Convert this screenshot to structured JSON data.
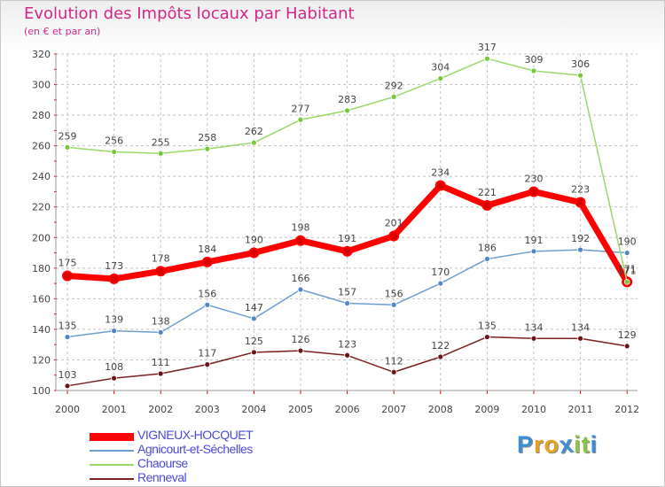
{
  "title": "Evolution des Impôts locaux par Habitant",
  "subtitle": "(en € et par an)",
  "logo": {
    "text": "Proxiti",
    "letters": [
      {
        "char": "P",
        "color": "#3b8fd9"
      },
      {
        "char": "r",
        "color": "#e8a21e"
      },
      {
        "char": "o",
        "color": "#e8a21e"
      },
      {
        "char": "x",
        "color": "#3b8fd9"
      },
      {
        "char": "i",
        "color": "#8cc63f"
      },
      {
        "char": "t",
        "color": "#8cc63f"
      },
      {
        "char": "i",
        "color": "#3b8fd9"
      }
    ]
  },
  "chart_data": {
    "type": "line",
    "title": "Evolution des Impôts locaux par Habitant",
    "subtitle": "(en € et par an)",
    "x": [
      "2000",
      "2001",
      "2002",
      "2003",
      "2004",
      "2005",
      "2006",
      "2007",
      "2008",
      "2009",
      "2010",
      "2011",
      "2012"
    ],
    "ylim": [
      100,
      320
    ],
    "yticks": [
      100,
      120,
      140,
      160,
      180,
      200,
      220,
      240,
      260,
      280,
      300,
      320
    ],
    "grid": true,
    "legend_position": "bottom-left",
    "series": [
      {
        "name": "VIGNEUX-HOCQUET",
        "color": "#ff0000",
        "marker": "#d80000",
        "values": [
          175,
          173,
          178,
          184,
          190,
          198,
          191,
          201,
          234,
          221,
          230,
          223,
          171
        ],
        "labels": [
          "175",
          "173",
          "178",
          "184",
          "190",
          "198",
          "191",
          "201",
          "234",
          "221",
          "230",
          "223",
          "171"
        ]
      },
      {
        "name": "Agnicourt-et-Séchelles",
        "color": "#6e9ed0",
        "marker": "#4f86c6",
        "values": [
          135,
          139,
          138,
          156,
          147,
          166,
          157,
          156,
          170,
          186,
          191,
          192,
          190
        ],
        "labels": [
          "135",
          "139",
          "138",
          "156",
          "147",
          "166",
          "157",
          "156",
          "170",
          "186",
          "191",
          "192",
          "190"
        ]
      },
      {
        "name": "Chaourse",
        "color": "#9ad86a",
        "marker": "#76c83a",
        "values": [
          259,
          256,
          255,
          258,
          262,
          277,
          283,
          292,
          304,
          317,
          309,
          306,
          171
        ],
        "labels": [
          "259",
          "256",
          "255",
          "258",
          "262",
          "277",
          "283",
          "292",
          "304",
          "317",
          "309",
          "306",
          "171"
        ]
      },
      {
        "name": "Renneval",
        "color": "#7a2020",
        "marker": "#6a1515",
        "values": [
          103,
          108,
          111,
          117,
          125,
          126,
          123,
          112,
          122,
          135,
          134,
          134,
          129
        ],
        "labels": [
          "103",
          "108",
          "111",
          "117",
          "125",
          "126",
          "123",
          "112",
          "122",
          "135",
          "134",
          "134",
          "129"
        ]
      }
    ]
  }
}
